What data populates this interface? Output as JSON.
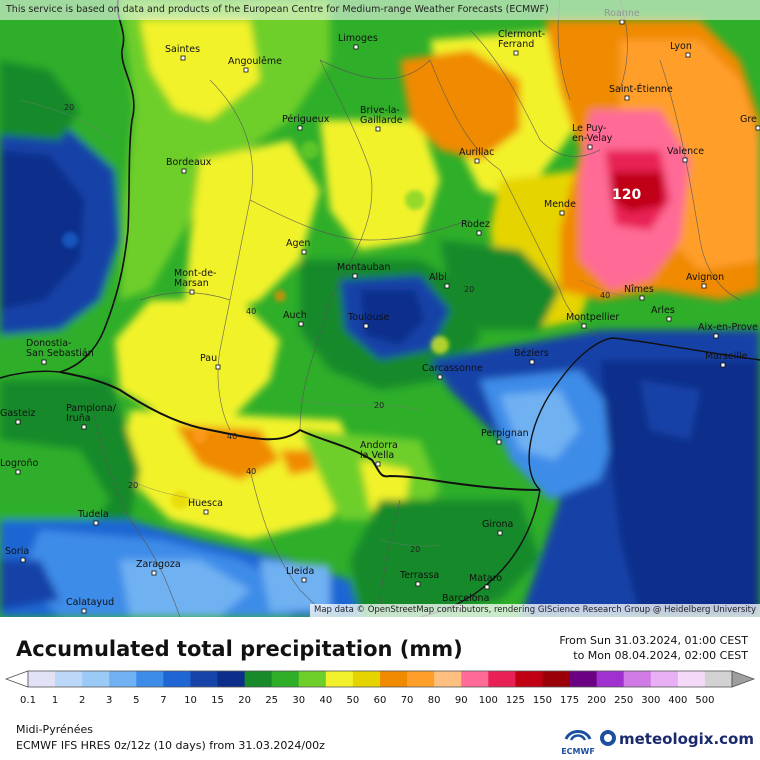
{
  "attribution_top": "This service is based on data and products of the European Centre for Medium-range Weather Forecasts (ECMWF)",
  "attribution_bottom": "Map data © OpenStreetMap contributors, rendering GIScience Research Group @ Heidelberg University",
  "title": "Accumulated total precipitation (mm)",
  "period": {
    "from": "From Sun 31.03.2024, 01:00 CEST",
    "to": "to Mon 08.04.2024, 02:00 CEST"
  },
  "region": "Midi-Pyrénées",
  "model": "ECMWF IFS HRES 0z/12z (10 days) from 31.03.2024/00z",
  "brand": {
    "ecmwf": "ECMWF",
    "meteologix": "meteologix.com"
  },
  "legend": {
    "labels": [
      "0.1",
      "1",
      "2",
      "3",
      "5",
      "7",
      "10",
      "15",
      "20",
      "25",
      "30",
      "40",
      "50",
      "60",
      "70",
      "80",
      "90",
      "100",
      "125",
      "150",
      "175",
      "200",
      "250",
      "300",
      "400",
      "500"
    ],
    "colors": [
      "#e2e2f7",
      "#bcd7f7",
      "#9ccaf6",
      "#6fb1f2",
      "#3d8ce8",
      "#1f66d4",
      "#1643a8",
      "#0c2d8a",
      "#188a2a",
      "#2fae2a",
      "#6ecf2a",
      "#f2f22c",
      "#e6d400",
      "#f08a00",
      "#ff9f2a",
      "#ffbf7f",
      "#ff6a96",
      "#e82055",
      "#c00012",
      "#9a0008",
      "#6a0082",
      "#a030d0",
      "#d07ae6",
      "#e8b0f4",
      "#f4daf8",
      "#d2d2d2"
    ],
    "first_arrow_color": "#ffffff",
    "last_arrow_color": "#9e9e9e"
  },
  "map": {
    "max_value_label": "120",
    "cities": [
      {
        "name": "Roanne"
      },
      {
        "name": "Saintes"
      },
      {
        "name": "Limoges"
      },
      {
        "name": "Clermont-\nFerrand"
      },
      {
        "name": "Lyon"
      },
      {
        "name": "Angoulême"
      },
      {
        "name": "Saint-Étienne"
      },
      {
        "name": "Brive-la-\nGaillarde"
      },
      {
        "name": "Périgueux"
      },
      {
        "name": "Le Puy-\nen-Velay"
      },
      {
        "name": "Aurillac"
      },
      {
        "name": "Valence"
      },
      {
        "name": "Bordeaux"
      },
      {
        "name": "Mende"
      },
      {
        "name": "Rodez"
      },
      {
        "name": "Agen"
      },
      {
        "name": "Mont-de-\nMarsan"
      },
      {
        "name": "Montauban"
      },
      {
        "name": "Albi"
      },
      {
        "name": "Avignon"
      },
      {
        "name": "Nîmes"
      },
      {
        "name": "Arles"
      },
      {
        "name": "Montpellier"
      },
      {
        "name": "Aix-en-Prove"
      },
      {
        "name": "Auch"
      },
      {
        "name": "Toulouse"
      },
      {
        "name": "Donostia-\nSan Sebastián"
      },
      {
        "name": "Béziers"
      },
      {
        "name": "Marseille"
      },
      {
        "name": "Pau"
      },
      {
        "name": "Carcassonne"
      },
      {
        "name": "Gasteiz"
      },
      {
        "name": "Pamplona/\nIruña"
      },
      {
        "name": "Perpignan"
      },
      {
        "name": "Andorra\nla Vella"
      },
      {
        "name": "Logroño"
      },
      {
        "name": "Tudela"
      },
      {
        "name": "Huesca"
      },
      {
        "name": "Girona"
      },
      {
        "name": "Soria"
      },
      {
        "name": "Zaragoza"
      },
      {
        "name": "Lleida"
      },
      {
        "name": "Terrassa"
      },
      {
        "name": "Mataro"
      },
      {
        "name": "Barcelona"
      },
      {
        "name": "Calatayud"
      },
      {
        "name": "Gre"
      }
    ],
    "contour_labels": [
      "20",
      "40",
      "40",
      "40",
      "20",
      "20",
      "20",
      "20",
      "40"
    ]
  }
}
